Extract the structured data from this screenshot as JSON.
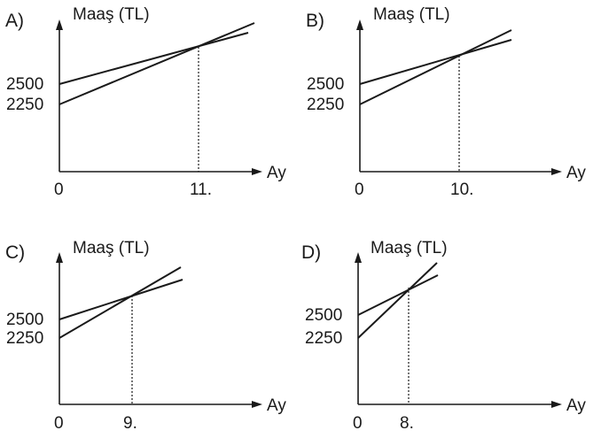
{
  "chart_data": [
    {
      "type": "line",
      "option_label": "A)",
      "ylabel": "Maaş (TL)",
      "xlabel": "Ay",
      "y_ticks": [
        "2500",
        "2250"
      ],
      "x_ticks": [
        "0",
        "11."
      ],
      "series": [
        {
          "start": 2500
        },
        {
          "start": 2250
        }
      ],
      "intersection_month": 11
    },
    {
      "type": "line",
      "option_label": "B)",
      "ylabel": "Maaş (TL)",
      "xlabel": "Ay",
      "y_ticks": [
        "2500",
        "2250"
      ],
      "x_ticks": [
        "0",
        "10."
      ],
      "series": [
        {
          "start": 2500
        },
        {
          "start": 2250
        }
      ],
      "intersection_month": 10
    },
    {
      "type": "line",
      "option_label": "C)",
      "ylabel": "Maaş (TL)",
      "xlabel": "Ay",
      "y_ticks": [
        "2500",
        "2250"
      ],
      "x_ticks": [
        "0",
        "9."
      ],
      "series": [
        {
          "start": 2500
        },
        {
          "start": 2250
        }
      ],
      "intersection_month": 9
    },
    {
      "type": "line",
      "option_label": "D)",
      "ylabel": "Maaş (TL)",
      "xlabel": "Ay",
      "y_ticks": [
        "2500",
        "2250"
      ],
      "x_ticks": [
        "0",
        "8."
      ],
      "series": [
        {
          "start": 2500
        },
        {
          "start": 2250
        }
      ],
      "intersection_month": 8
    }
  ]
}
